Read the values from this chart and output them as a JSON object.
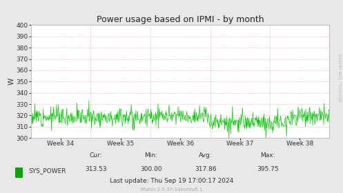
{
  "title": "Power usage based on IPMI - by month",
  "ylabel": "W",
  "ylim": [
    300,
    400
  ],
  "yticks": [
    300,
    310,
    320,
    330,
    340,
    350,
    360,
    370,
    380,
    390,
    400
  ],
  "background_color": "#e8e8e8",
  "plot_bg_color": "#ffffff",
  "grid_color": "#ff8888",
  "line_color": "#00cc00",
  "week_labels": [
    "Week 34",
    "Week 35",
    "Week 36",
    "Week 37",
    "Week 38"
  ],
  "cur": "313.53",
  "min": "300.00",
  "avg": "317.86",
  "max": "395.75",
  "last_update": "Thu Sep 19 17:00:17 2024",
  "legend_label": "SYS_POWER",
  "legend_color": "#00aa00",
  "munin_text": "Munin 2.0.37-1ubuntu0.1",
  "rrdtool_text": "RRDTOOL / TOBI OETIKER",
  "title_fontsize": 9,
  "axis_fontsize": 6.5,
  "stats_fontsize": 6.5,
  "n_points": 700,
  "base_value": 319,
  "noise_scale": 4,
  "seed": 12
}
